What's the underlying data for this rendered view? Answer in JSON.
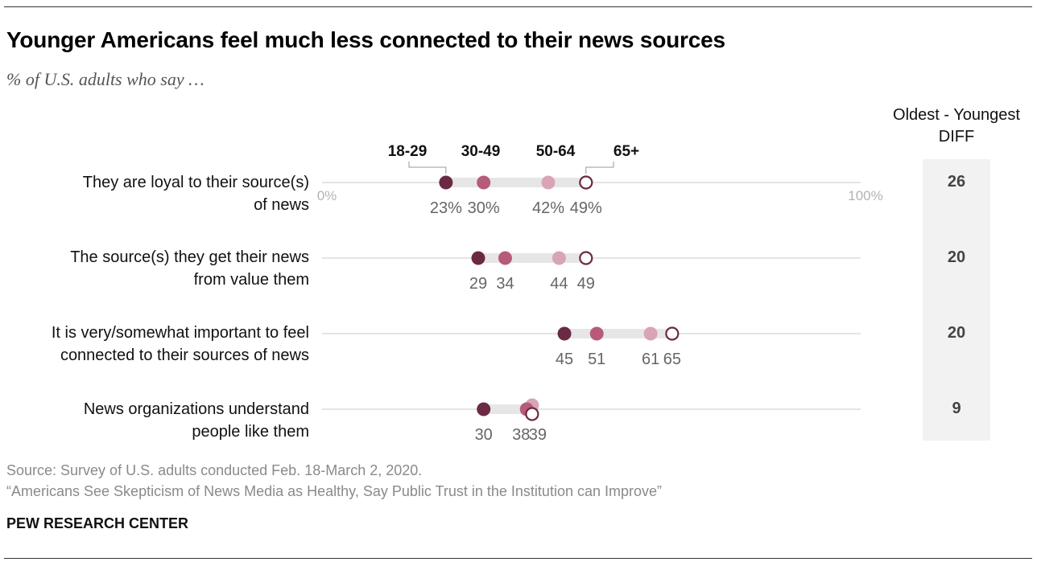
{
  "header": {
    "title": "Younger Americans feel much less connected to their news sources",
    "subtitle": "% of U.S. adults who say …"
  },
  "diff": {
    "header_line1": "Oldest - Youngest",
    "header_line2": "DIFF"
  },
  "footer": {
    "source": "Source: Survey of U.S. adults conducted Feb. 18-March 2, 2020.",
    "report": "“Americans See Skepticism of News Media as Healthy, Say Public Trust in the Institution can Improve”",
    "brand": "PEW RESEARCH CENTER"
  },
  "colors": {
    "age_18_29": "#6b2a43",
    "age_30_49": "#b65b7a",
    "age_50_64": "#d9a4b6",
    "age_65_plus_stroke": "#6b2a43",
    "range_bar": "#e6e6e6",
    "axis_line": "#c8c8c8",
    "value_label": "#666666"
  },
  "chart_data": {
    "type": "dot-range",
    "series": [
      {
        "name": "18-29",
        "key": "age_18_29"
      },
      {
        "name": "30-49",
        "key": "age_30_49"
      },
      {
        "name": "50-64",
        "key": "age_50_64"
      },
      {
        "name": "65+",
        "key": "age_65_plus"
      }
    ],
    "axis": {
      "min_label": "0%",
      "max_label": "100%",
      "range": [
        0,
        100
      ]
    },
    "rows": [
      {
        "label_line1": "They are loyal to their source(s)",
        "label_line2": "of news",
        "values": [
          23,
          30,
          42,
          49
        ],
        "value_labels": [
          "23%",
          "30%",
          "42%",
          "49%"
        ],
        "diff": "26"
      },
      {
        "label_line1": "The source(s) they get their news",
        "label_line2": "from value them",
        "values": [
          29,
          34,
          44,
          49
        ],
        "value_labels": [
          "29",
          "34",
          "44",
          "49"
        ],
        "diff": "20"
      },
      {
        "label_line1": "It is very/somewhat important to feel",
        "label_line2": "connected to their sources of news",
        "values": [
          45,
          51,
          61,
          65
        ],
        "value_labels": [
          "45",
          "51",
          "61",
          "65"
        ],
        "diff": "20"
      },
      {
        "label_line1": "News organizations understand",
        "label_line2": "people like them",
        "values": [
          30,
          38,
          39,
          39
        ],
        "value_labels": [
          "30",
          "38",
          "39",
          ""
        ],
        "diff": "9"
      }
    ]
  }
}
